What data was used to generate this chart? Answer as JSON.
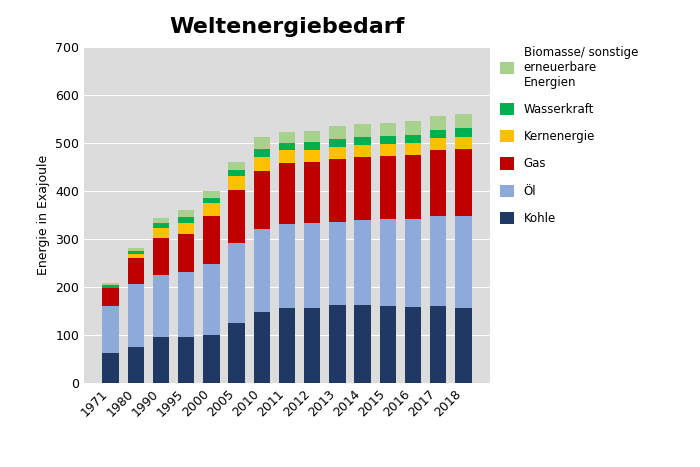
{
  "years": [
    "1971",
    "1980",
    "1990",
    "1995",
    "2000",
    "2005",
    "2010",
    "2011",
    "2012",
    "2013",
    "2014",
    "2015",
    "2016",
    "2017",
    "2018"
  ],
  "kohle": [
    63,
    75,
    96,
    96,
    100,
    125,
    148,
    157,
    157,
    163,
    163,
    160,
    158,
    160,
    157
  ],
  "oel": [
    97,
    130,
    128,
    135,
    148,
    167,
    172,
    173,
    176,
    173,
    177,
    182,
    183,
    187,
    191
  ],
  "gas": [
    37,
    55,
    78,
    79,
    99,
    109,
    121,
    127,
    126,
    131,
    130,
    131,
    133,
    137,
    138
  ],
  "kernenergie": [
    1,
    8,
    21,
    24,
    28,
    30,
    29,
    27,
    26,
    24,
    25,
    25,
    26,
    26,
    27
  ],
  "wasserkraft": [
    5,
    7,
    10,
    11,
    11,
    13,
    16,
    16,
    16,
    16,
    17,
    17,
    17,
    17,
    17
  ],
  "biomasse": [
    5,
    5,
    10,
    14,
    14,
    16,
    25,
    22,
    24,
    27,
    27,
    27,
    29,
    28,
    30
  ],
  "title": "Weltenergiebedarf",
  "ylabel": "Energie in Exajoule",
  "colors": {
    "kohle": "#1f3864",
    "oel": "#8eaadb",
    "gas": "#c00000",
    "kernenergie": "#ffc000",
    "wasserkraft": "#00b050",
    "biomasse": "#a9d18e"
  },
  "legend_labels": {
    "kohle": "Kohle",
    "oel": "Öl",
    "gas": "Gas",
    "kernenergie": "Kernenergie",
    "wasserkraft": "Wasserkraft",
    "biomasse": "Biomasse/ sonstige\nerneuerbare\nEnergien"
  },
  "ylim": [
    0,
    700
  ],
  "yticks": [
    0,
    100,
    200,
    300,
    400,
    500,
    600,
    700
  ],
  "plot_bg_color": "#dcdcdc",
  "fig_bg_color": "#ffffff",
  "bar_width": 0.65
}
